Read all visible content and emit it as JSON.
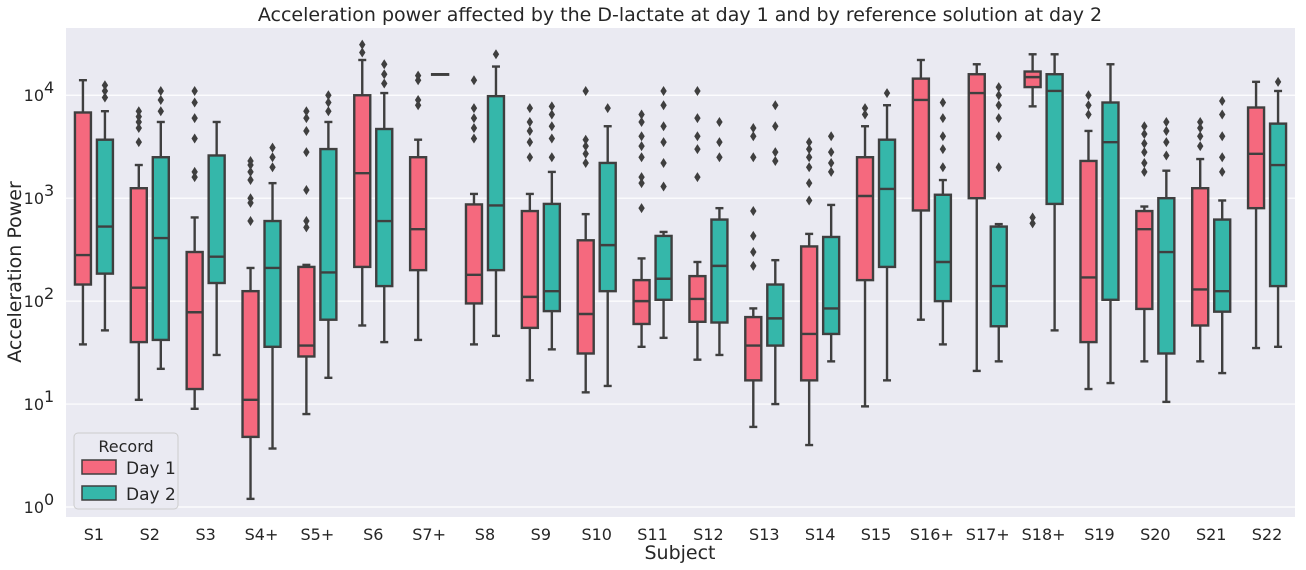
{
  "chart_data": {
    "type": "box",
    "title": "Acceleration power affected by the D-lactate at day 1 and by reference solution at day 2",
    "xlabel": "Subject",
    "ylabel": "Acceleration Power",
    "yscale": "log",
    "ylim": [
      0.8,
      45000
    ],
    "yticks": [
      {
        "value": 1,
        "base": "10",
        "exp": "0"
      },
      {
        "value": 10,
        "base": "10",
        "exp": "1"
      },
      {
        "value": 100,
        "base": "10",
        "exp": "2"
      },
      {
        "value": 1000,
        "base": "10",
        "exp": "3"
      },
      {
        "value": 10000,
        "base": "10",
        "exp": "4"
      }
    ],
    "grid": true,
    "categories": [
      "S1",
      "S2",
      "S3",
      "S4+",
      "S5+",
      "S6",
      "S7+",
      "S8",
      "S9",
      "S10",
      "S11",
      "S12",
      "S13",
      "S14",
      "S15",
      "S16+",
      "S17+",
      "S18+",
      "S19",
      "S20",
      "S21",
      "S22"
    ],
    "legend": {
      "title": "Record",
      "position": "lower-left"
    },
    "colors": {
      "Day 1": "#f5697e",
      "Day 2": "#35b7aa",
      "edge": "#3f3f3f",
      "background": "#eaeaf2",
      "grid": "#ffffff"
    },
    "series": [
      {
        "name": "Day 1",
        "boxes": [
          {
            "whislo": 38,
            "q1": 145,
            "med": 280,
            "q3": 6800,
            "whishi": 14000,
            "fliers": []
          },
          {
            "whislo": 11,
            "q1": 40,
            "med": 135,
            "q3": 1250,
            "whishi": 2100,
            "fliers": [
              3500,
              4800,
              5500,
              6200,
              7000
            ]
          },
          {
            "whislo": 9,
            "q1": 14,
            "med": 78,
            "q3": 300,
            "whishi": 650,
            "fliers": [
              1600,
              1800,
              3800,
              6000,
              8500,
              11000
            ]
          },
          {
            "whislo": 1.2,
            "q1": 4.8,
            "med": 11,
            "q3": 125,
            "whishi": 210,
            "fliers": [
              600,
              900,
              1000,
              1500,
              1800,
              2100,
              2300
            ]
          },
          {
            "whislo": 8,
            "q1": 29,
            "med": 37,
            "q3": 215,
            "whishi": 225,
            "fliers": [
              520,
              600,
              1200,
              2800,
              4500,
              6000,
              7000
            ]
          },
          {
            "whislo": 58,
            "q1": 215,
            "med": 1750,
            "q3": 10000,
            "whishi": 22000,
            "fliers": [
              26000,
              31000
            ]
          },
          {
            "whislo": 42,
            "q1": 200,
            "med": 500,
            "q3": 2500,
            "whishi": 3700,
            "fliers": [
              8000,
              9000,
              14000,
              15500
            ]
          },
          {
            "whislo": 38,
            "q1": 95,
            "med": 180,
            "q3": 870,
            "whishi": 1100,
            "fliers": [
              3800,
              4800,
              6000,
              7500,
              14000
            ]
          },
          {
            "whislo": 17,
            "q1": 55,
            "med": 110,
            "q3": 750,
            "whishi": 1100,
            "fliers": [
              2500,
              3500,
              4500,
              5500,
              7500
            ]
          },
          {
            "whislo": 13,
            "q1": 31,
            "med": 75,
            "q3": 390,
            "whishi": 700,
            "fliers": [
              2200,
              2700,
              3200,
              3700,
              11000
            ]
          },
          {
            "whislo": 36,
            "q1": 60,
            "med": 100,
            "q3": 160,
            "whishi": 260,
            "fliers": [
              800,
              1400,
              1600,
              2500,
              3200,
              4000,
              5500,
              6500
            ]
          },
          {
            "whislo": 27,
            "q1": 63,
            "med": 105,
            "q3": 175,
            "whishi": 240,
            "fliers": [
              1600,
              3000,
              4000,
              6000,
              11000
            ]
          },
          {
            "whislo": 6,
            "q1": 17,
            "med": 37,
            "q3": 70,
            "whishi": 85,
            "fliers": [
              220,
              300,
              430,
              750,
              2500,
              4000,
              4800
            ]
          },
          {
            "whislo": 4,
            "q1": 17,
            "med": 48,
            "q3": 340,
            "whishi": 450,
            "fliers": [
              950,
              1400,
              2000,
              2500,
              3000,
              3500
            ]
          },
          {
            "whislo": 9.5,
            "q1": 160,
            "med": 1050,
            "q3": 2500,
            "whishi": 5000,
            "fliers": [
              6500,
              7500
            ]
          },
          {
            "whislo": 66,
            "q1": 760,
            "med": 9000,
            "q3": 14500,
            "whishi": 22000,
            "fliers": []
          },
          {
            "whislo": 21,
            "q1": 1000,
            "med": 10500,
            "q3": 16000,
            "whishi": 20000,
            "fliers": []
          },
          {
            "whislo": 7800,
            "q1": 12000,
            "med": 15000,
            "q3": 17000,
            "whishi": 25000,
            "fliers": [
              570,
              650
            ]
          },
          {
            "whislo": 14,
            "q1": 40,
            "med": 170,
            "q3": 2300,
            "whishi": 4500,
            "fliers": [
              6500,
              8000,
              10000
            ]
          },
          {
            "whislo": 26,
            "q1": 84,
            "med": 500,
            "q3": 750,
            "whishi": 830,
            "fliers": [
              1800,
              2200,
              2800,
              3400,
              4200,
              5000
            ]
          },
          {
            "whislo": 26,
            "q1": 58,
            "med": 130,
            "q3": 1250,
            "whishi": 2400,
            "fliers": [
              3200,
              4000,
              4800,
              5500
            ]
          },
          {
            "whislo": 35,
            "q1": 800,
            "med": 2700,
            "q3": 7600,
            "whishi": 13500,
            "fliers": []
          }
        ]
      },
      {
        "name": "Day 2",
        "boxes": [
          {
            "whislo": 52,
            "q1": 185,
            "med": 530,
            "q3": 3700,
            "whishi": 7000,
            "fliers": [
              9500,
              11000,
              12500
            ]
          },
          {
            "whislo": 22,
            "q1": 42,
            "med": 410,
            "q3": 2500,
            "whishi": 5500,
            "fliers": [
              7000,
              9000,
              11000
            ]
          },
          {
            "whislo": 30,
            "q1": 150,
            "med": 270,
            "q3": 2600,
            "whishi": 5500,
            "fliers": []
          },
          {
            "whislo": 3.7,
            "q1": 36,
            "med": 210,
            "q3": 600,
            "whishi": 1400,
            "fliers": [
              2000,
              2500,
              3100
            ]
          },
          {
            "whislo": 18,
            "q1": 66,
            "med": 190,
            "q3": 3000,
            "whishi": 5500,
            "fliers": [
              7000,
              8500,
              10000
            ]
          },
          {
            "whislo": 40,
            "q1": 140,
            "med": 600,
            "q3": 4700,
            "whishi": 10500,
            "fliers": [
              13000,
              16000,
              20000
            ]
          },
          {
            "whislo": 16000,
            "q1": 16000,
            "med": 16000,
            "q3": 16000,
            "whishi": 16000,
            "fliers": []
          },
          {
            "whislo": 46,
            "q1": 200,
            "med": 850,
            "q3": 9800,
            "whishi": 19000,
            "fliers": [
              25000
            ]
          },
          {
            "whislo": 34,
            "q1": 80,
            "med": 125,
            "q3": 880,
            "whishi": 1800,
            "fliers": [
              2500,
              3800,
              5000,
              6500,
              7800
            ]
          },
          {
            "whislo": 15,
            "q1": 125,
            "med": 350,
            "q3": 2200,
            "whishi": 5000,
            "fliers": [
              7500
            ]
          },
          {
            "whislo": 44,
            "q1": 103,
            "med": 165,
            "q3": 430,
            "whishi": 470,
            "fliers": [
              1300,
              2200,
              3500,
              5000,
              8000,
              11000
            ]
          },
          {
            "whislo": 30,
            "q1": 62,
            "med": 220,
            "q3": 620,
            "whishi": 800,
            "fliers": [
              2500,
              3500,
              5500
            ]
          },
          {
            "whislo": 10,
            "q1": 37,
            "med": 68,
            "q3": 145,
            "whishi": 250,
            "fliers": [
              2300,
              2800,
              5000,
              8000
            ]
          },
          {
            "whislo": 26,
            "q1": 48,
            "med": 85,
            "q3": 420,
            "whishi": 860,
            "fliers": [
              1800,
              2200,
              2800,
              4000
            ]
          },
          {
            "whislo": 17,
            "q1": 215,
            "med": 1230,
            "q3": 3700,
            "whishi": 8000,
            "fliers": [
              10500
            ]
          },
          {
            "whislo": 38,
            "q1": 100,
            "med": 240,
            "q3": 1080,
            "whishi": 1500,
            "fliers": [
              2000,
              3000,
              4000,
              6000,
              8500
            ]
          },
          {
            "whislo": 26,
            "q1": 57,
            "med": 140,
            "q3": 530,
            "whishi": 560,
            "fliers": [
              2000,
              4000,
              6000,
              8000,
              10000,
              12000
            ]
          },
          {
            "whislo": 52,
            "q1": 880,
            "med": 11000,
            "q3": 16000,
            "whishi": 25000,
            "fliers": []
          },
          {
            "whislo": 16,
            "q1": 103,
            "med": 3500,
            "q3": 8500,
            "whishi": 20000,
            "fliers": []
          },
          {
            "whislo": 10.5,
            "q1": 31,
            "med": 300,
            "q3": 1000,
            "whishi": 1850,
            "fliers": [
              2600,
              3500,
              4500,
              5500
            ]
          },
          {
            "whislo": 20,
            "q1": 79,
            "med": 125,
            "q3": 620,
            "whishi": 950,
            "fliers": [
              1800,
              2500,
              4000,
              6500,
              8800
            ]
          },
          {
            "whislo": 36,
            "q1": 140,
            "med": 2100,
            "q3": 5300,
            "whishi": 11000,
            "fliers": [
              13500
            ]
          }
        ]
      }
    ]
  }
}
